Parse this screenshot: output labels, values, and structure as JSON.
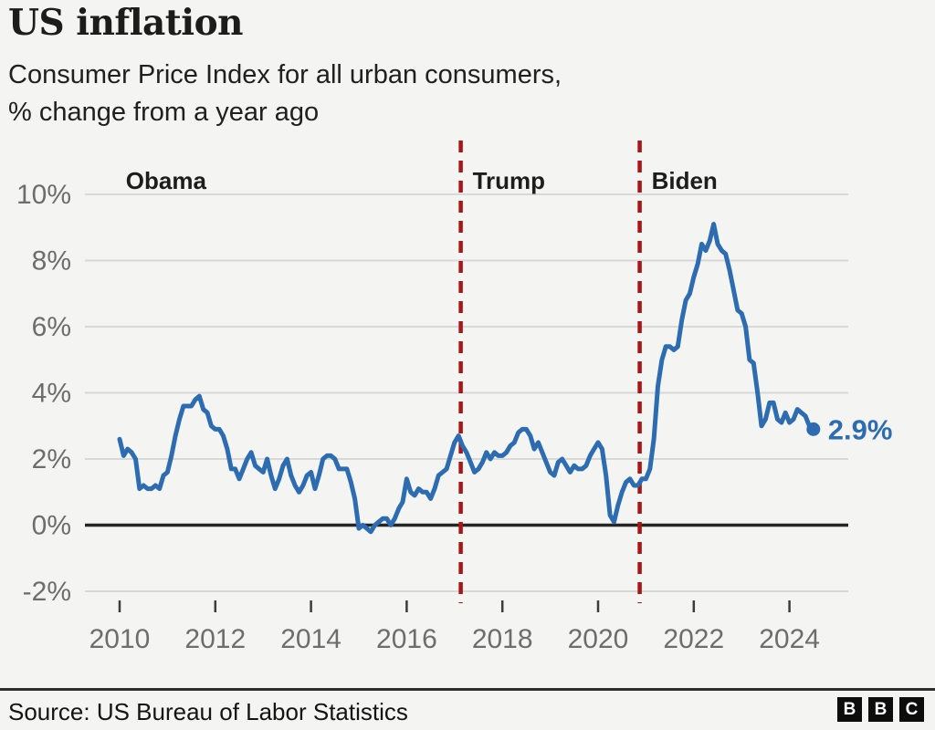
{
  "header": {
    "title": "US inflation",
    "subtitle_line1": "Consumer Price Index for all urban consumers,",
    "subtitle_line2": "% change from a year ago"
  },
  "chart_data": {
    "type": "line",
    "title": "US inflation",
    "subtitle": "Consumer Price Index for all urban consumers, % change from a year ago",
    "unit": "%",
    "frequency": "monthly",
    "x_start_year": 2010,
    "x_start_month": 1,
    "x_end_label": "Jul 2024",
    "ylim": [
      -2,
      10
    ],
    "grid": true,
    "series": [
      {
        "name": "CPI, % change from a year ago",
        "values": [
          2.6,
          2.1,
          2.3,
          2.2,
          2.0,
          1.1,
          1.2,
          1.1,
          1.1,
          1.2,
          1.1,
          1.5,
          1.6,
          2.1,
          2.7,
          3.2,
          3.6,
          3.6,
          3.6,
          3.8,
          3.9,
          3.5,
          3.4,
          3.0,
          2.9,
          2.9,
          2.7,
          2.3,
          1.7,
          1.7,
          1.4,
          1.7,
          2.0,
          2.2,
          1.8,
          1.7,
          1.6,
          2.0,
          1.5,
          1.1,
          1.4,
          1.8,
          2.0,
          1.5,
          1.2,
          1.0,
          1.2,
          1.5,
          1.6,
          1.1,
          1.5,
          2.0,
          2.1,
          2.1,
          2.0,
          1.7,
          1.7,
          1.7,
          1.3,
          0.8,
          -0.1,
          0.0,
          -0.1,
          -0.2,
          0.0,
          0.1,
          0.2,
          0.2,
          0.0,
          0.2,
          0.5,
          0.7,
          1.4,
          1.0,
          0.9,
          1.1,
          1.0,
          1.0,
          0.8,
          1.1,
          1.5,
          1.6,
          1.7,
          2.1,
          2.5,
          2.7,
          2.4,
          2.2,
          1.9,
          1.6,
          1.7,
          1.9,
          2.2,
          2.0,
          2.2,
          2.1,
          2.1,
          2.2,
          2.4,
          2.5,
          2.8,
          2.9,
          2.9,
          2.7,
          2.3,
          2.5,
          2.2,
          1.9,
          1.6,
          1.5,
          1.9,
          2.0,
          1.8,
          1.6,
          1.8,
          1.7,
          1.7,
          1.8,
          2.1,
          2.3,
          2.5,
          2.3,
          1.5,
          0.3,
          0.1,
          0.6,
          1.0,
          1.3,
          1.4,
          1.2,
          1.2,
          1.4,
          1.4,
          1.7,
          2.6,
          4.2,
          5.0,
          5.4,
          5.4,
          5.3,
          5.4,
          6.2,
          6.8,
          7.0,
          7.5,
          7.9,
          8.5,
          8.3,
          8.6,
          9.1,
          8.5,
          8.3,
          8.2,
          7.7,
          7.1,
          6.5,
          6.4,
          6.0,
          5.0,
          4.9,
          4.0,
          3.0,
          3.2,
          3.7,
          3.7,
          3.2,
          3.1,
          3.4,
          3.1,
          3.2,
          3.5,
          3.4,
          3.3,
          3.0,
          2.9
        ]
      }
    ],
    "yticks": [
      {
        "value": -2,
        "label": "-2%"
      },
      {
        "value": 0,
        "label": "0%"
      },
      {
        "value": 2,
        "label": "2%"
      },
      {
        "value": 4,
        "label": "4%"
      },
      {
        "value": 6,
        "label": "6%"
      },
      {
        "value": 8,
        "label": "8%"
      },
      {
        "value": 10,
        "label": "10%"
      }
    ],
    "xticks": [
      {
        "value": 2010,
        "label": "2010"
      },
      {
        "value": 2012,
        "label": "2012"
      },
      {
        "value": 2014,
        "label": "2014"
      },
      {
        "value": 2016,
        "label": "2016"
      },
      {
        "value": 2018,
        "label": "2018"
      },
      {
        "value": 2020,
        "label": "2020"
      },
      {
        "value": 2022,
        "label": "2022"
      },
      {
        "value": 2024,
        "label": "2024"
      }
    ],
    "annotations": [
      {
        "label": "Obama",
        "x_year": 2010.13,
        "dashed_line": false
      },
      {
        "label": "Trump",
        "x_year": 2017.13,
        "dashed_line": true
      },
      {
        "label": "Biden",
        "x_year": 2020.87,
        "dashed_line": true
      }
    ],
    "end_label": "2.9%",
    "colors": {
      "line": "#2d6cb1",
      "divider": "#a81616",
      "grid": "#d8d8d8",
      "zero_line": "#262626",
      "axis_text": "#6d6d6d",
      "annotation_text": "#1d1d1d"
    }
  },
  "footer": {
    "source": "Source: US Bureau of Labor Statistics",
    "logo_letters": [
      "B",
      "B",
      "C"
    ]
  }
}
